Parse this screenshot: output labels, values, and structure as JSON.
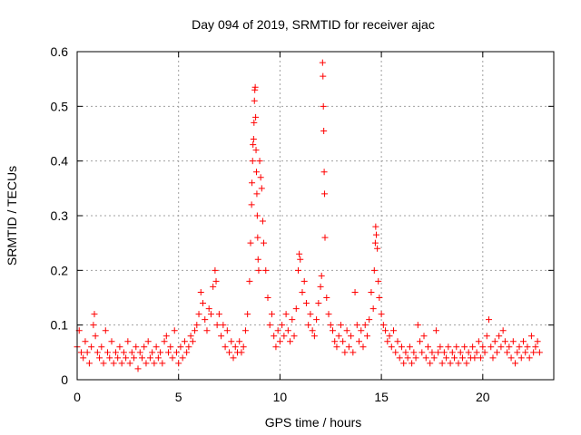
{
  "chart_data": {
    "type": "scatter",
    "title": "Day 094 of 2019, SRMTID for receiver ajac",
    "xlabel": "GPS time / hours",
    "ylabel": "SRMTID / TECUs",
    "xlim": [
      0,
      23.5
    ],
    "ylim": [
      0,
      0.6
    ],
    "xticks": [
      0,
      5,
      10,
      15,
      20
    ],
    "xtick_labels": [
      "0",
      "5",
      "10",
      "15",
      "20"
    ],
    "yticks": [
      0,
      0.1,
      0.2,
      0.3,
      0.4,
      0.5,
      0.6
    ],
    "ytick_labels": [
      "0",
      "0.1",
      "0.2",
      "0.3",
      "0.4",
      "0.5",
      "0.6"
    ],
    "grid": true,
    "marker": "+",
    "color": "#ff0000",
    "series": [
      {
        "name": "ajac",
        "points": [
          [
            0.0,
            0.06
          ],
          [
            0.1,
            0.09
          ],
          [
            0.2,
            0.05
          ],
          [
            0.3,
            0.04
          ],
          [
            0.4,
            0.07
          ],
          [
            0.5,
            0.05
          ],
          [
            0.6,
            0.03
          ],
          [
            0.7,
            0.06
          ],
          [
            0.8,
            0.1
          ],
          [
            0.85,
            0.12
          ],
          [
            0.9,
            0.08
          ],
          [
            1.0,
            0.05
          ],
          [
            1.1,
            0.04
          ],
          [
            1.2,
            0.06
          ],
          [
            1.3,
            0.03
          ],
          [
            1.4,
            0.09
          ],
          [
            1.5,
            0.05
          ],
          [
            1.6,
            0.04
          ],
          [
            1.7,
            0.07
          ],
          [
            1.8,
            0.03
          ],
          [
            1.9,
            0.05
          ],
          [
            2.0,
            0.04
          ],
          [
            2.1,
            0.06
          ],
          [
            2.2,
            0.03
          ],
          [
            2.3,
            0.05
          ],
          [
            2.4,
            0.04
          ],
          [
            2.5,
            0.07
          ],
          [
            2.6,
            0.03
          ],
          [
            2.7,
            0.05
          ],
          [
            2.8,
            0.04
          ],
          [
            2.9,
            0.06
          ],
          [
            3.0,
            0.02
          ],
          [
            3.1,
            0.05
          ],
          [
            3.2,
            0.04
          ],
          [
            3.3,
            0.06
          ],
          [
            3.4,
            0.03
          ],
          [
            3.5,
            0.07
          ],
          [
            3.6,
            0.04
          ],
          [
            3.7,
            0.05
          ],
          [
            3.8,
            0.03
          ],
          [
            3.9,
            0.06
          ],
          [
            4.0,
            0.04
          ],
          [
            4.1,
            0.05
          ],
          [
            4.2,
            0.03
          ],
          [
            4.3,
            0.07
          ],
          [
            4.4,
            0.08
          ],
          [
            4.5,
            0.05
          ],
          [
            4.6,
            0.06
          ],
          [
            4.7,
            0.04
          ],
          [
            4.8,
            0.09
          ],
          [
            4.9,
            0.05
          ],
          [
            5.0,
            0.03
          ],
          [
            5.1,
            0.06
          ],
          [
            5.2,
            0.04
          ],
          [
            5.3,
            0.07
          ],
          [
            5.4,
            0.05
          ],
          [
            5.5,
            0.06
          ],
          [
            5.6,
            0.08
          ],
          [
            5.7,
            0.07
          ],
          [
            5.8,
            0.09
          ],
          [
            5.9,
            0.1
          ],
          [
            6.0,
            0.12
          ],
          [
            6.1,
            0.16
          ],
          [
            6.2,
            0.14
          ],
          [
            6.3,
            0.11
          ],
          [
            6.4,
            0.09
          ],
          [
            6.5,
            0.13
          ],
          [
            6.6,
            0.12
          ],
          [
            6.7,
            0.17
          ],
          [
            6.8,
            0.2
          ],
          [
            6.85,
            0.18
          ],
          [
            6.9,
            0.1
          ],
          [
            7.0,
            0.12
          ],
          [
            7.1,
            0.08
          ],
          [
            7.2,
            0.1
          ],
          [
            7.3,
            0.06
          ],
          [
            7.4,
            0.09
          ],
          [
            7.5,
            0.05
          ],
          [
            7.6,
            0.07
          ],
          [
            7.7,
            0.04
          ],
          [
            7.8,
            0.06
          ],
          [
            7.9,
            0.05
          ],
          [
            8.0,
            0.07
          ],
          [
            8.1,
            0.05
          ],
          [
            8.2,
            0.06
          ],
          [
            8.3,
            0.09
          ],
          [
            8.4,
            0.12
          ],
          [
            8.5,
            0.18
          ],
          [
            8.55,
            0.25
          ],
          [
            8.6,
            0.32
          ],
          [
            8.62,
            0.36
          ],
          [
            8.65,
            0.4
          ],
          [
            8.67,
            0.43
          ],
          [
            8.7,
            0.44
          ],
          [
            8.72,
            0.47
          ],
          [
            8.74,
            0.51
          ],
          [
            8.76,
            0.53
          ],
          [
            8.78,
            0.535
          ],
          [
            8.8,
            0.48
          ],
          [
            8.82,
            0.42
          ],
          [
            8.84,
            0.38
          ],
          [
            8.86,
            0.34
          ],
          [
            8.88,
            0.3
          ],
          [
            8.9,
            0.26
          ],
          [
            8.92,
            0.22
          ],
          [
            8.95,
            0.2
          ],
          [
            9.0,
            0.4
          ],
          [
            9.05,
            0.37
          ],
          [
            9.1,
            0.35
          ],
          [
            9.15,
            0.29
          ],
          [
            9.2,
            0.25
          ],
          [
            9.3,
            0.2
          ],
          [
            9.4,
            0.15
          ],
          [
            9.5,
            0.1
          ],
          [
            9.6,
            0.12
          ],
          [
            9.7,
            0.08
          ],
          [
            9.8,
            0.06
          ],
          [
            9.9,
            0.09
          ],
          [
            10.0,
            0.07
          ],
          [
            10.1,
            0.1
          ],
          [
            10.2,
            0.08
          ],
          [
            10.3,
            0.12
          ],
          [
            10.4,
            0.09
          ],
          [
            10.5,
            0.07
          ],
          [
            10.6,
            0.11
          ],
          [
            10.7,
            0.08
          ],
          [
            10.8,
            0.13
          ],
          [
            10.9,
            0.2
          ],
          [
            10.95,
            0.23
          ],
          [
            11.0,
            0.22
          ],
          [
            11.1,
            0.16
          ],
          [
            11.2,
            0.18
          ],
          [
            11.3,
            0.14
          ],
          [
            11.4,
            0.1
          ],
          [
            11.5,
            0.12
          ],
          [
            11.6,
            0.09
          ],
          [
            11.7,
            0.08
          ],
          [
            11.8,
            0.11
          ],
          [
            11.9,
            0.14
          ],
          [
            12.0,
            0.17
          ],
          [
            12.05,
            0.19
          ],
          [
            12.1,
            0.58
          ],
          [
            12.12,
            0.555
          ],
          [
            12.14,
            0.5
          ],
          [
            12.16,
            0.455
          ],
          [
            12.18,
            0.38
          ],
          [
            12.2,
            0.34
          ],
          [
            12.22,
            0.26
          ],
          [
            12.3,
            0.15
          ],
          [
            12.4,
            0.12
          ],
          [
            12.5,
            0.1
          ],
          [
            12.6,
            0.09
          ],
          [
            12.7,
            0.07
          ],
          [
            12.8,
            0.06
          ],
          [
            12.9,
            0.08
          ],
          [
            13.0,
            0.1
          ],
          [
            13.1,
            0.07
          ],
          [
            13.2,
            0.05
          ],
          [
            13.3,
            0.09
          ],
          [
            13.4,
            0.06
          ],
          [
            13.5,
            0.08
          ],
          [
            13.6,
            0.05
          ],
          [
            13.7,
            0.16
          ],
          [
            13.8,
            0.1
          ],
          [
            13.9,
            0.07
          ],
          [
            14.0,
            0.09
          ],
          [
            14.1,
            0.06
          ],
          [
            14.2,
            0.1
          ],
          [
            14.3,
            0.08
          ],
          [
            14.4,
            0.11
          ],
          [
            14.5,
            0.16
          ],
          [
            14.6,
            0.13
          ],
          [
            14.65,
            0.2
          ],
          [
            14.7,
            0.25
          ],
          [
            14.72,
            0.28
          ],
          [
            14.75,
            0.265
          ],
          [
            14.8,
            0.24
          ],
          [
            14.85,
            0.18
          ],
          [
            14.9,
            0.15
          ],
          [
            15.0,
            0.12
          ],
          [
            15.1,
            0.1
          ],
          [
            15.2,
            0.09
          ],
          [
            15.3,
            0.07
          ],
          [
            15.4,
            0.08
          ],
          [
            15.5,
            0.06
          ],
          [
            15.6,
            0.09
          ],
          [
            15.7,
            0.05
          ],
          [
            15.8,
            0.07
          ],
          [
            15.9,
            0.04
          ],
          [
            16.0,
            0.06
          ],
          [
            16.1,
            0.03
          ],
          [
            16.2,
            0.05
          ],
          [
            16.3,
            0.04
          ],
          [
            16.4,
            0.06
          ],
          [
            16.5,
            0.03
          ],
          [
            16.6,
            0.05
          ],
          [
            16.7,
            0.04
          ],
          [
            16.8,
            0.1
          ],
          [
            16.9,
            0.07
          ],
          [
            17.0,
            0.05
          ],
          [
            17.1,
            0.08
          ],
          [
            17.2,
            0.04
          ],
          [
            17.3,
            0.06
          ],
          [
            17.4,
            0.03
          ],
          [
            17.5,
            0.05
          ],
          [
            17.6,
            0.04
          ],
          [
            17.7,
            0.09
          ],
          [
            17.8,
            0.05
          ],
          [
            17.9,
            0.06
          ],
          [
            18.0,
            0.03
          ],
          [
            18.1,
            0.05
          ],
          [
            18.2,
            0.04
          ],
          [
            18.3,
            0.06
          ],
          [
            18.4,
            0.03
          ],
          [
            18.5,
            0.05
          ],
          [
            18.6,
            0.04
          ],
          [
            18.7,
            0.06
          ],
          [
            18.8,
            0.03
          ],
          [
            18.9,
            0.05
          ],
          [
            19.0,
            0.04
          ],
          [
            19.1,
            0.06
          ],
          [
            19.2,
            0.03
          ],
          [
            19.3,
            0.05
          ],
          [
            19.4,
            0.04
          ],
          [
            19.5,
            0.06
          ],
          [
            19.6,
            0.04
          ],
          [
            19.7,
            0.05
          ],
          [
            19.8,
            0.07
          ],
          [
            19.9,
            0.04
          ],
          [
            20.0,
            0.06
          ],
          [
            20.1,
            0.05
          ],
          [
            20.2,
            0.08
          ],
          [
            20.3,
            0.11
          ],
          [
            20.4,
            0.06
          ],
          [
            20.5,
            0.04
          ],
          [
            20.6,
            0.07
          ],
          [
            20.7,
            0.05
          ],
          [
            20.8,
            0.08
          ],
          [
            20.9,
            0.06
          ],
          [
            21.0,
            0.09
          ],
          [
            21.1,
            0.07
          ],
          [
            21.2,
            0.05
          ],
          [
            21.3,
            0.06
          ],
          [
            21.4,
            0.04
          ],
          [
            21.5,
            0.07
          ],
          [
            21.6,
            0.03
          ],
          [
            21.7,
            0.05
          ],
          [
            21.8,
            0.06
          ],
          [
            21.9,
            0.04
          ],
          [
            22.0,
            0.07
          ],
          [
            22.1,
            0.05
          ],
          [
            22.2,
            0.06
          ],
          [
            22.3,
            0.04
          ],
          [
            22.4,
            0.08
          ],
          [
            22.5,
            0.05
          ],
          [
            22.6,
            0.06
          ],
          [
            22.7,
            0.07
          ],
          [
            22.8,
            0.05
          ]
        ]
      }
    ]
  }
}
